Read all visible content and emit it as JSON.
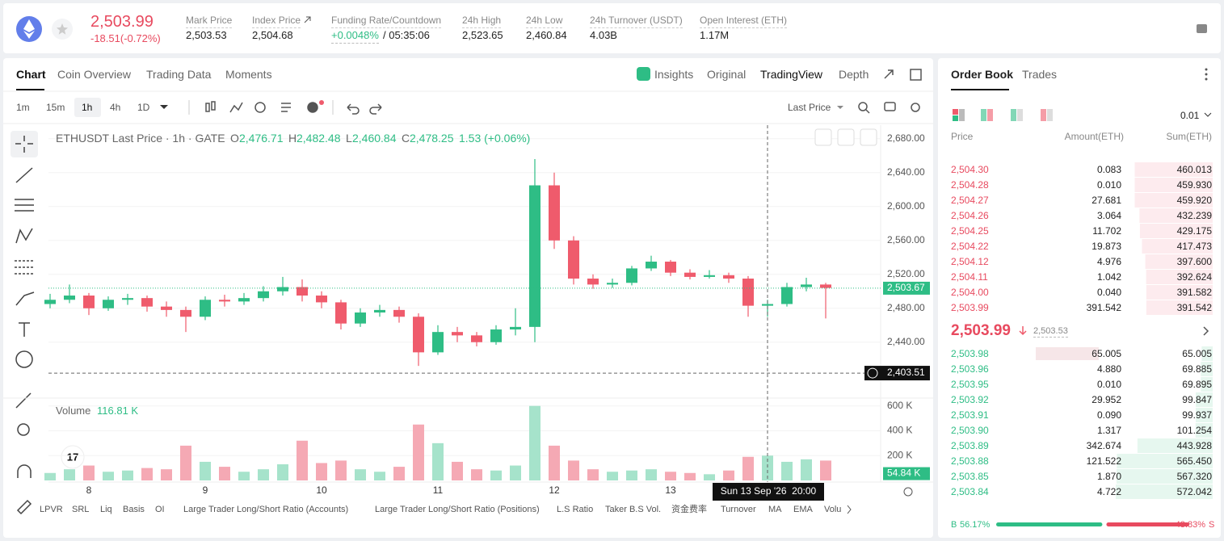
{
  "header": {
    "price": "2,503.99",
    "change": "-18.51(-0.72%)",
    "stats": [
      {
        "label": "Mark Price",
        "value": "2,503.53"
      },
      {
        "label": "Index Price",
        "value": "2,504.68"
      },
      {
        "label": "Funding Rate/Countdown",
        "value": "+0.0048%",
        "value2": "/ 05:35:06"
      },
      {
        "label": "24h High",
        "value": "2,523.65"
      },
      {
        "label": "24h Low",
        "value": "2,460.84"
      },
      {
        "label": "24h Turnover (USDT)",
        "value": "4.03B"
      },
      {
        "label": "Open Interest (ETH)",
        "value": "1.17M"
      }
    ]
  },
  "chart_tabs": [
    "Chart",
    "Coin Overview",
    "Trading Data",
    "Moments"
  ],
  "chart_views": [
    "Insights",
    "Original",
    "TradingView",
    "Depth"
  ],
  "intervals": [
    "1m",
    "15m",
    "1h",
    "4h",
    "1D"
  ],
  "price_type": "Last Price",
  "legend": {
    "title": "ETHUSDT Last Price · 1h · GATE",
    "o": "O",
    "open": "2,476.71",
    "h": "H",
    "high": "2,482.48",
    "l": "L",
    "low": "2,460.84",
    "c": "C",
    "close": "2,478.25",
    "change": "1.53 (+0.06%)"
  },
  "volume_label": "Volume",
  "volume_value": "116.81 K",
  "crosshair_label": "Sun 13 Sep '26  20:00",
  "chart_data": {
    "type": "candlestick",
    "categories": [
      null,
      null,
      "8",
      null,
      null,
      null,
      null,
      null,
      "9",
      null,
      null,
      null,
      null,
      null,
      "10",
      null,
      null,
      null,
      null,
      null,
      "11",
      null,
      null,
      null,
      null,
      null,
      "12",
      null,
      null,
      null,
      null,
      null,
      "13",
      null,
      null,
      null,
      null,
      null,
      null,
      null,
      null
    ],
    "open": [
      2485,
      2490,
      2495,
      2480,
      2490,
      2492,
      2482,
      2478,
      2470,
      2490,
      2488,
      2492,
      2500,
      2505,
      2495,
      2487,
      2462,
      2475,
      2478,
      2470,
      2428,
      2452,
      2448,
      2440,
      2455,
      2458,
      2625,
      2560,
      2515,
      2508,
      2510,
      2527,
      2535,
      2522,
      2517,
      2519,
      2515,
      2483,
      2485,
      2505,
      2508
    ],
    "high": [
      2497,
      2508,
      2498,
      2494,
      2497,
      2495,
      2488,
      2482,
      2494,
      2496,
      2498,
      2506,
      2517,
      2514,
      2500,
      2490,
      2480,
      2484,
      2482,
      2474,
      2460,
      2458,
      2452,
      2460,
      2480,
      2656,
      2640,
      2565,
      2520,
      2515,
      2530,
      2542,
      2537,
      2526,
      2525,
      2522,
      2518,
      2490,
      2510,
      2516,
      2510
    ],
    "low": [
      2480,
      2486,
      2472,
      2477,
      2484,
      2476,
      2470,
      2452,
      2466,
      2482,
      2484,
      2488,
      2495,
      2488,
      2480,
      2455,
      2458,
      2470,
      2463,
      2412,
      2425,
      2440,
      2435,
      2437,
      2448,
      2440,
      2550,
      2508,
      2503,
      2504,
      2507,
      2524,
      2518,
      2514,
      2515,
      2510,
      2470,
      2470,
      2482,
      2500,
      2468
    ],
    "close": [
      2490,
      2495,
      2480,
      2490,
      2492,
      2482,
      2478,
      2470,
      2490,
      2488,
      2492,
      2500,
      2505,
      2495,
      2487,
      2462,
      2475,
      2478,
      2470,
      2428,
      2452,
      2448,
      2440,
      2455,
      2458,
      2625,
      2560,
      2515,
      2508,
      2510,
      2527,
      2535,
      2522,
      2517,
      2519,
      2515,
      2483,
      2485,
      2505,
      2508,
      2504
    ],
    "volume": [
      60000,
      90000,
      120000,
      70000,
      80000,
      100000,
      90000,
      280000,
      150000,
      110000,
      70000,
      90000,
      130000,
      320000,
      140000,
      160000,
      90000,
      70000,
      110000,
      450000,
      300000,
      150000,
      90000,
      80000,
      120000,
      600000,
      280000,
      160000,
      90000,
      70000,
      80000,
      90000,
      70000,
      60000,
      50000,
      80000,
      190000,
      200000,
      150000,
      170000,
      160000
    ],
    "ylim": [
      2375,
      2696
    ],
    "yticks": [
      {
        "value": 2440,
        "label": "2,440.00"
      },
      {
        "value": 2480,
        "label": "2,480.00"
      },
      {
        "value": 2520,
        "label": "2,520.00"
      },
      {
        "value": 2560,
        "label": "2,560.00"
      },
      {
        "value": 2600,
        "label": "2,600.00"
      },
      {
        "value": 2640,
        "label": "2,640.00"
      },
      {
        "value": 2680,
        "label": "2,680.00"
      }
    ],
    "vlim": [
      0,
      650000
    ],
    "vticks": [
      {
        "value": 200000,
        "label": "200 K"
      },
      {
        "value": 400000,
        "label": "400 K"
      },
      {
        "value": 600000,
        "label": "600 K"
      }
    ],
    "last_price": {
      "value": 2503.67,
      "label": "2,503.67"
    },
    "crosshair_price": {
      "value": 2403.51,
      "label": "2,403.51"
    },
    "last_volume": {
      "value": 54840,
      "label": "54.84 K"
    },
    "up_color": "#2ebd85",
    "down_color": "#ef5b6c",
    "up_volume_color": "#a6e3cb",
    "down_volume_color": "#f5a9b4"
  },
  "indicators": [
    "LPVR",
    "SRL",
    "Liq",
    "Basis",
    "OI",
    "Large Trader Long/Short Ratio (Accounts)",
    "Large Trader Long/Short Ratio (Positions)",
    "L.S Ratio",
    "Taker B.S Vol.",
    "资金费率",
    "Turnover",
    "MA",
    "EMA",
    "Volu"
  ],
  "order_book": {
    "tabs": [
      "Order Book",
      "Trades"
    ],
    "precision": "0.01",
    "columns": [
      "Price",
      "Amount(ETH)",
      "Sum(ETH)"
    ],
    "asks": [
      [
        "2,504.30",
        "0.083",
        "460.013"
      ],
      [
        "2,504.28",
        "0.010",
        "459.930"
      ],
      [
        "2,504.27",
        "27.681",
        "459.920"
      ],
      [
        "2,504.26",
        "3.064",
        "432.239"
      ],
      [
        "2,504.25",
        "11.702",
        "429.175"
      ],
      [
        "2,504.22",
        "19.873",
        "417.473"
      ],
      [
        "2,504.12",
        "4.976",
        "397.600"
      ],
      [
        "2,504.11",
        "1.042",
        "392.624"
      ],
      [
        "2,504.00",
        "0.040",
        "391.582"
      ],
      [
        "2,503.99",
        "391.542",
        "391.542"
      ]
    ],
    "mid": "2,503.99",
    "mark": "2,503.53",
    "bids": [
      [
        "2,503.98",
        "65.005",
        "65.005"
      ],
      [
        "2,503.96",
        "4.880",
        "69.885"
      ],
      [
        "2,503.95",
        "0.010",
        "69.895"
      ],
      [
        "2,503.92",
        "29.952",
        "99.847"
      ],
      [
        "2,503.91",
        "0.090",
        "99.937"
      ],
      [
        "2,503.90",
        "1.317",
        "101.254"
      ],
      [
        "2,503.89",
        "342.674",
        "443.928"
      ],
      [
        "2,503.88",
        "121.522",
        "565.450"
      ],
      [
        "2,503.85",
        "1.870",
        "567.320"
      ],
      [
        "2,503.84",
        "4.722",
        "572.042"
      ]
    ],
    "ratio": {
      "buy_tag": "B",
      "buy": {
        "value": 56.17,
        "label": "56.17%"
      },
      "sell": {
        "value": 43.83,
        "label": "43.83%"
      },
      "sell_tag": "S"
    }
  }
}
